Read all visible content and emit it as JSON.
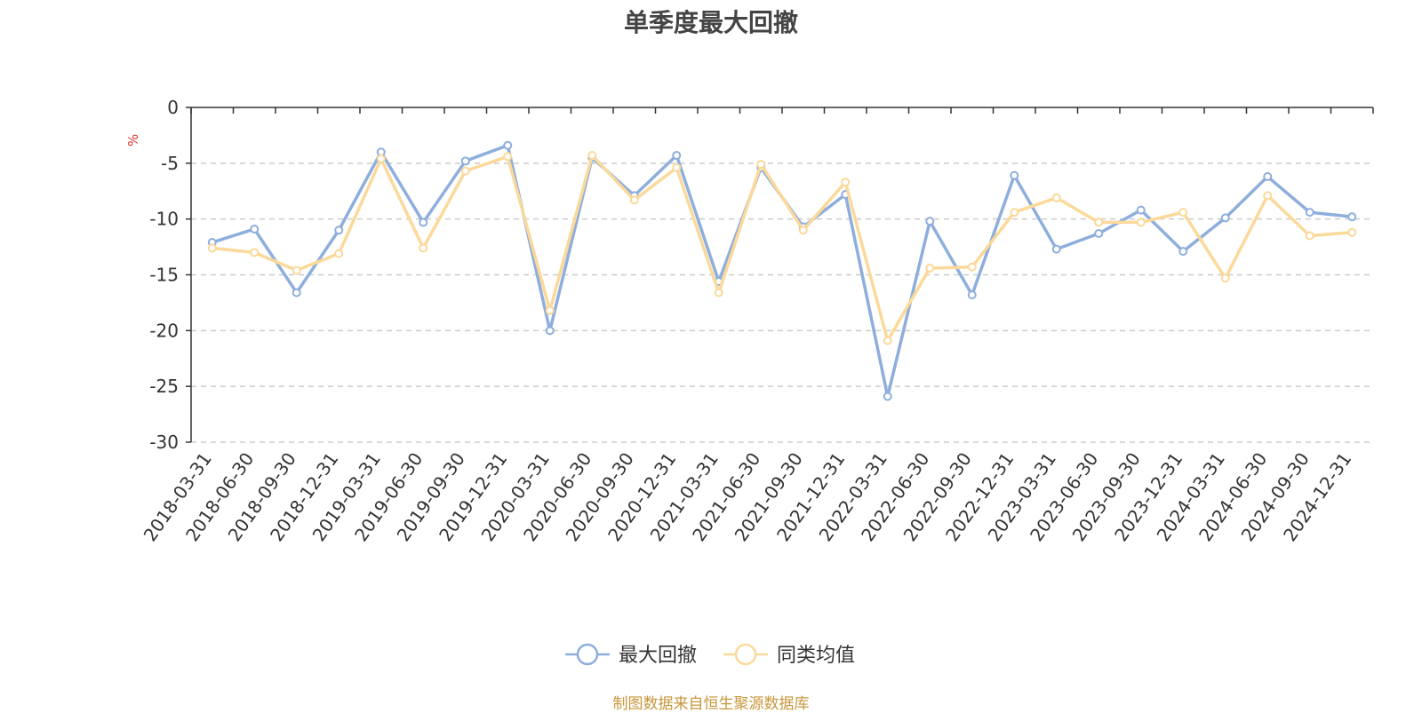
{
  "chart_data": {
    "type": "line",
    "title": "单季度最大回撤",
    "ylabel": "%",
    "xlabel": "",
    "ylim": [
      -30,
      0
    ],
    "yticks": [
      0,
      -5,
      -10,
      -15,
      -20,
      -25,
      -30
    ],
    "grid": true,
    "legend_position": "bottom",
    "categories": [
      "2018-03-31",
      "2018-06-30",
      "2018-09-30",
      "2018-12-31",
      "2019-03-31",
      "2019-06-30",
      "2019-09-30",
      "2019-12-31",
      "2020-03-31",
      "2020-06-30",
      "2020-09-30",
      "2020-12-31",
      "2021-03-31",
      "2021-06-30",
      "2021-09-30",
      "2021-12-31",
      "2022-03-31",
      "2022-06-30",
      "2022-09-30",
      "2022-12-31",
      "2023-03-31",
      "2023-06-30",
      "2023-09-30",
      "2023-12-31",
      "2024-03-31",
      "2024-06-30",
      "2024-09-30",
      "2024-12-31"
    ],
    "series": [
      {
        "name": "最大回撤",
        "color": "#8eaedc",
        "values": [
          -12.1,
          -10.9,
          -16.6,
          -11.0,
          -4.0,
          -10.3,
          -4.8,
          -3.4,
          -20.0,
          -4.5,
          -7.9,
          -4.3,
          -15.6,
          -5.4,
          -10.7,
          -7.8,
          -25.9,
          -10.2,
          -16.8,
          -6.1,
          -12.7,
          -11.3,
          -9.2,
          -12.9,
          -9.9,
          -6.2,
          -9.4,
          -9.8
        ]
      },
      {
        "name": "同类均值",
        "color": "#fbd99a",
        "values": [
          -12.6,
          -13.0,
          -14.6,
          -13.1,
          -4.6,
          -12.6,
          -5.7,
          -4.4,
          -18.2,
          -4.3,
          -8.3,
          -5.4,
          -16.6,
          -5.1,
          -11.0,
          -6.7,
          -20.9,
          -14.4,
          -14.3,
          -9.4,
          -8.1,
          -10.3,
          -10.3,
          -9.4,
          -15.3,
          -7.9,
          -11.5,
          -11.2
        ]
      }
    ],
    "source": "制图数据来自恒生聚源数据库"
  }
}
